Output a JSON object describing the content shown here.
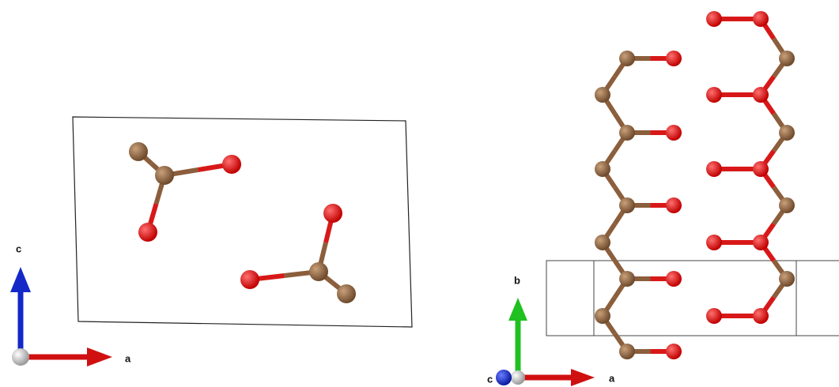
{
  "left_panel": {
    "axis_labels": {
      "c": "c",
      "a": "a"
    }
  },
  "right_panel": {
    "axis_labels": {
      "b": "b",
      "c": "c",
      "a": "a"
    }
  }
}
